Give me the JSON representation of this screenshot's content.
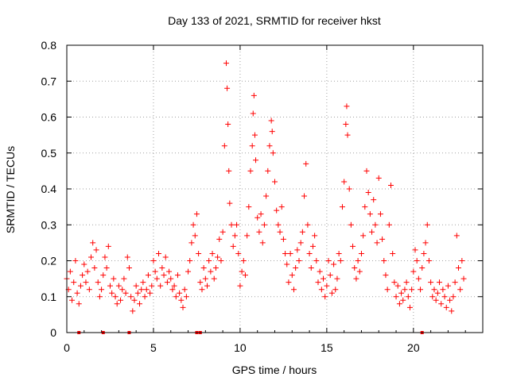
{
  "chart_data": {
    "type": "scatter",
    "title": "Day 133 of 2021, SRMTID for receiver hkst",
    "xlabel": "GPS time / hours",
    "ylabel": "SRMTID / TECUs",
    "xlim": [
      0,
      24
    ],
    "ylim": [
      0,
      0.8
    ],
    "x_ticks": [
      0,
      5,
      10,
      15,
      20
    ],
    "x_tick_labels": [
      "0",
      "5",
      "10",
      "15",
      "20"
    ],
    "y_ticks": [
      0,
      0.1,
      0.2,
      0.3,
      0.4,
      0.5,
      0.6,
      0.7,
      0.8
    ],
    "y_tick_labels": [
      "0",
      "0.1",
      "0.2",
      "0.3",
      "0.4",
      "0.5",
      "0.6",
      "0.7",
      "0.8"
    ],
    "grid": true,
    "marker": "plus",
    "color": "#ff0000",
    "series": [
      {
        "name": "SRMTID",
        "points": [
          [
            0.0,
            0.15
          ],
          [
            0.1,
            0.12
          ],
          [
            0.2,
            0.17
          ],
          [
            0.3,
            0.09
          ],
          [
            0.4,
            0.14
          ],
          [
            0.5,
            0.2
          ],
          [
            0.6,
            0.11
          ],
          [
            0.7,
            0.08
          ],
          [
            0.8,
            0.13
          ],
          [
            0.9,
            0.16
          ],
          [
            1.0,
            0.19
          ],
          [
            1.1,
            0.14
          ],
          [
            1.2,
            0.17
          ],
          [
            1.3,
            0.12
          ],
          [
            1.4,
            0.21
          ],
          [
            1.5,
            0.25
          ],
          [
            1.6,
            0.18
          ],
          [
            1.7,
            0.23
          ],
          [
            1.8,
            0.14
          ],
          [
            1.9,
            0.1
          ],
          [
            2.0,
            0.12
          ],
          [
            2.1,
            0.16
          ],
          [
            2.2,
            0.21
          ],
          [
            2.3,
            0.18
          ],
          [
            2.4,
            0.24
          ],
          [
            2.5,
            0.13
          ],
          [
            2.6,
            0.11
          ],
          [
            2.7,
            0.15
          ],
          [
            2.8,
            0.1
          ],
          [
            2.9,
            0.08
          ],
          [
            3.0,
            0.13
          ],
          [
            3.1,
            0.09
          ],
          [
            3.2,
            0.12
          ],
          [
            3.3,
            0.15
          ],
          [
            3.4,
            0.11
          ],
          [
            3.5,
            0.21
          ],
          [
            3.6,
            0.18
          ],
          [
            3.7,
            0.1
          ],
          [
            3.8,
            0.06
          ],
          [
            3.9,
            0.09
          ],
          [
            4.0,
            0.13
          ],
          [
            4.1,
            0.11
          ],
          [
            4.2,
            0.08
          ],
          [
            4.3,
            0.12
          ],
          [
            4.4,
            0.14
          ],
          [
            4.5,
            0.1
          ],
          [
            4.6,
            0.12
          ],
          [
            4.7,
            0.16
          ],
          [
            4.8,
            0.11
          ],
          [
            4.9,
            0.13
          ],
          [
            5.0,
            0.2
          ],
          [
            5.1,
            0.17
          ],
          [
            5.2,
            0.15
          ],
          [
            5.3,
            0.22
          ],
          [
            5.4,
            0.13
          ],
          [
            5.5,
            0.18
          ],
          [
            5.6,
            0.16
          ],
          [
            5.7,
            0.21
          ],
          [
            5.8,
            0.14
          ],
          [
            5.9,
            0.17
          ],
          [
            6.0,
            0.15
          ],
          [
            6.1,
            0.12
          ],
          [
            6.2,
            0.13
          ],
          [
            6.3,
            0.1
          ],
          [
            6.4,
            0.16
          ],
          [
            6.5,
            0.11
          ],
          [
            6.6,
            0.09
          ],
          [
            6.7,
            0.07
          ],
          [
            6.8,
            0.12
          ],
          [
            6.9,
            0.1
          ],
          [
            7.0,
            0.17
          ],
          [
            7.1,
            0.2
          ],
          [
            7.2,
            0.25
          ],
          [
            7.3,
            0.3
          ],
          [
            7.4,
            0.27
          ],
          [
            7.5,
            0.33
          ],
          [
            7.6,
            0.22
          ],
          [
            7.7,
            0.14
          ],
          [
            7.8,
            0.12
          ],
          [
            7.9,
            0.18
          ],
          [
            8.0,
            0.15
          ],
          [
            8.1,
            0.13
          ],
          [
            8.2,
            0.2
          ],
          [
            8.3,
            0.17
          ],
          [
            8.4,
            0.22
          ],
          [
            8.5,
            0.15
          ],
          [
            8.6,
            0.18
          ],
          [
            8.7,
            0.21
          ],
          [
            8.8,
            0.26
          ],
          [
            8.9,
            0.2
          ],
          [
            9.0,
            0.28
          ],
          [
            9.1,
            0.52
          ],
          [
            9.2,
            0.75
          ],
          [
            9.25,
            0.68
          ],
          [
            9.3,
            0.58
          ],
          [
            9.35,
            0.45
          ],
          [
            9.4,
            0.36
          ],
          [
            9.5,
            0.3
          ],
          [
            9.6,
            0.24
          ],
          [
            9.7,
            0.27
          ],
          [
            9.8,
            0.3
          ],
          [
            9.9,
            0.22
          ],
          [
            10.0,
            0.13
          ],
          [
            10.1,
            0.17
          ],
          [
            10.2,
            0.2
          ],
          [
            10.3,
            0.16
          ],
          [
            10.4,
            0.27
          ],
          [
            10.5,
            0.35
          ],
          [
            10.6,
            0.45
          ],
          [
            10.7,
            0.52
          ],
          [
            10.75,
            0.61
          ],
          [
            10.8,
            0.66
          ],
          [
            10.85,
            0.55
          ],
          [
            10.9,
            0.48
          ],
          [
            11.0,
            0.32
          ],
          [
            11.1,
            0.28
          ],
          [
            11.2,
            0.33
          ],
          [
            11.3,
            0.25
          ],
          [
            11.4,
            0.3
          ],
          [
            11.5,
            0.38
          ],
          [
            11.6,
            0.45
          ],
          [
            11.7,
            0.52
          ],
          [
            11.8,
            0.59
          ],
          [
            11.85,
            0.56
          ],
          [
            11.9,
            0.5
          ],
          [
            12.0,
            0.42
          ],
          [
            12.1,
            0.34
          ],
          [
            12.2,
            0.3
          ],
          [
            12.3,
            0.28
          ],
          [
            12.4,
            0.35
          ],
          [
            12.5,
            0.26
          ],
          [
            12.6,
            0.22
          ],
          [
            12.7,
            0.19
          ],
          [
            12.8,
            0.14
          ],
          [
            12.9,
            0.22
          ],
          [
            13.0,
            0.16
          ],
          [
            13.1,
            0.12
          ],
          [
            13.2,
            0.18
          ],
          [
            13.3,
            0.23
          ],
          [
            13.4,
            0.2
          ],
          [
            13.5,
            0.25
          ],
          [
            13.6,
            0.28
          ],
          [
            13.7,
            0.38
          ],
          [
            13.8,
            0.47
          ],
          [
            13.9,
            0.3
          ],
          [
            14.0,
            0.22
          ],
          [
            14.1,
            0.18
          ],
          [
            14.2,
            0.24
          ],
          [
            14.3,
            0.27
          ],
          [
            14.4,
            0.2
          ],
          [
            14.5,
            0.14
          ],
          [
            14.6,
            0.17
          ],
          [
            14.7,
            0.12
          ],
          [
            14.8,
            0.15
          ],
          [
            14.9,
            0.1
          ],
          [
            15.0,
            0.13
          ],
          [
            15.1,
            0.2
          ],
          [
            15.2,
            0.16
          ],
          [
            15.3,
            0.11
          ],
          [
            15.4,
            0.19
          ],
          [
            15.5,
            0.12
          ],
          [
            15.6,
            0.15
          ],
          [
            15.7,
            0.22
          ],
          [
            15.8,
            0.2
          ],
          [
            15.9,
            0.35
          ],
          [
            16.0,
            0.42
          ],
          [
            16.1,
            0.58
          ],
          [
            16.15,
            0.63
          ],
          [
            16.2,
            0.55
          ],
          [
            16.3,
            0.4
          ],
          [
            16.4,
            0.3
          ],
          [
            16.5,
            0.24
          ],
          [
            16.6,
            0.18
          ],
          [
            16.7,
            0.15
          ],
          [
            16.8,
            0.2
          ],
          [
            16.9,
            0.17
          ],
          [
            17.0,
            0.22
          ],
          [
            17.1,
            0.27
          ],
          [
            17.2,
            0.35
          ],
          [
            17.3,
            0.45
          ],
          [
            17.4,
            0.39
          ],
          [
            17.5,
            0.33
          ],
          [
            17.6,
            0.28
          ],
          [
            17.7,
            0.37
          ],
          [
            17.8,
            0.3
          ],
          [
            17.9,
            0.25
          ],
          [
            18.0,
            0.43
          ],
          [
            18.1,
            0.33
          ],
          [
            18.2,
            0.26
          ],
          [
            18.3,
            0.2
          ],
          [
            18.4,
            0.16
          ],
          [
            18.5,
            0.12
          ],
          [
            18.6,
            0.3
          ],
          [
            18.7,
            0.41
          ],
          [
            18.8,
            0.22
          ],
          [
            18.9,
            0.14
          ],
          [
            19.0,
            0.1
          ],
          [
            19.1,
            0.13
          ],
          [
            19.2,
            0.08
          ],
          [
            19.3,
            0.11
          ],
          [
            19.4,
            0.09
          ],
          [
            19.5,
            0.12
          ],
          [
            19.6,
            0.14
          ],
          [
            19.7,
            0.1
          ],
          [
            19.8,
            0.07
          ],
          [
            19.9,
            0.12
          ],
          [
            20.0,
            0.17
          ],
          [
            20.1,
            0.23
          ],
          [
            20.2,
            0.2
          ],
          [
            20.3,
            0.15
          ],
          [
            20.4,
            0.12
          ],
          [
            20.5,
            0.18
          ],
          [
            20.6,
            0.22
          ],
          [
            20.7,
            0.25
          ],
          [
            20.8,
            0.3
          ],
          [
            20.9,
            0.2
          ],
          [
            21.0,
            0.14
          ],
          [
            21.1,
            0.1
          ],
          [
            21.2,
            0.12
          ],
          [
            21.3,
            0.09
          ],
          [
            21.4,
            0.11
          ],
          [
            21.5,
            0.14
          ],
          [
            21.6,
            0.08
          ],
          [
            21.7,
            0.12
          ],
          [
            21.8,
            0.1
          ],
          [
            21.9,
            0.07
          ],
          [
            22.0,
            0.13
          ],
          [
            22.1,
            0.09
          ],
          [
            22.2,
            0.06
          ],
          [
            22.3,
            0.1
          ],
          [
            22.4,
            0.14
          ],
          [
            22.5,
            0.27
          ],
          [
            22.6,
            0.18
          ],
          [
            22.7,
            0.12
          ],
          [
            22.8,
            0.2
          ],
          [
            22.9,
            0.15
          ]
        ]
      }
    ],
    "zero_markers_x": [
      0.7,
      2.1,
      3.6,
      7.5,
      7.7,
      20.5
    ]
  }
}
